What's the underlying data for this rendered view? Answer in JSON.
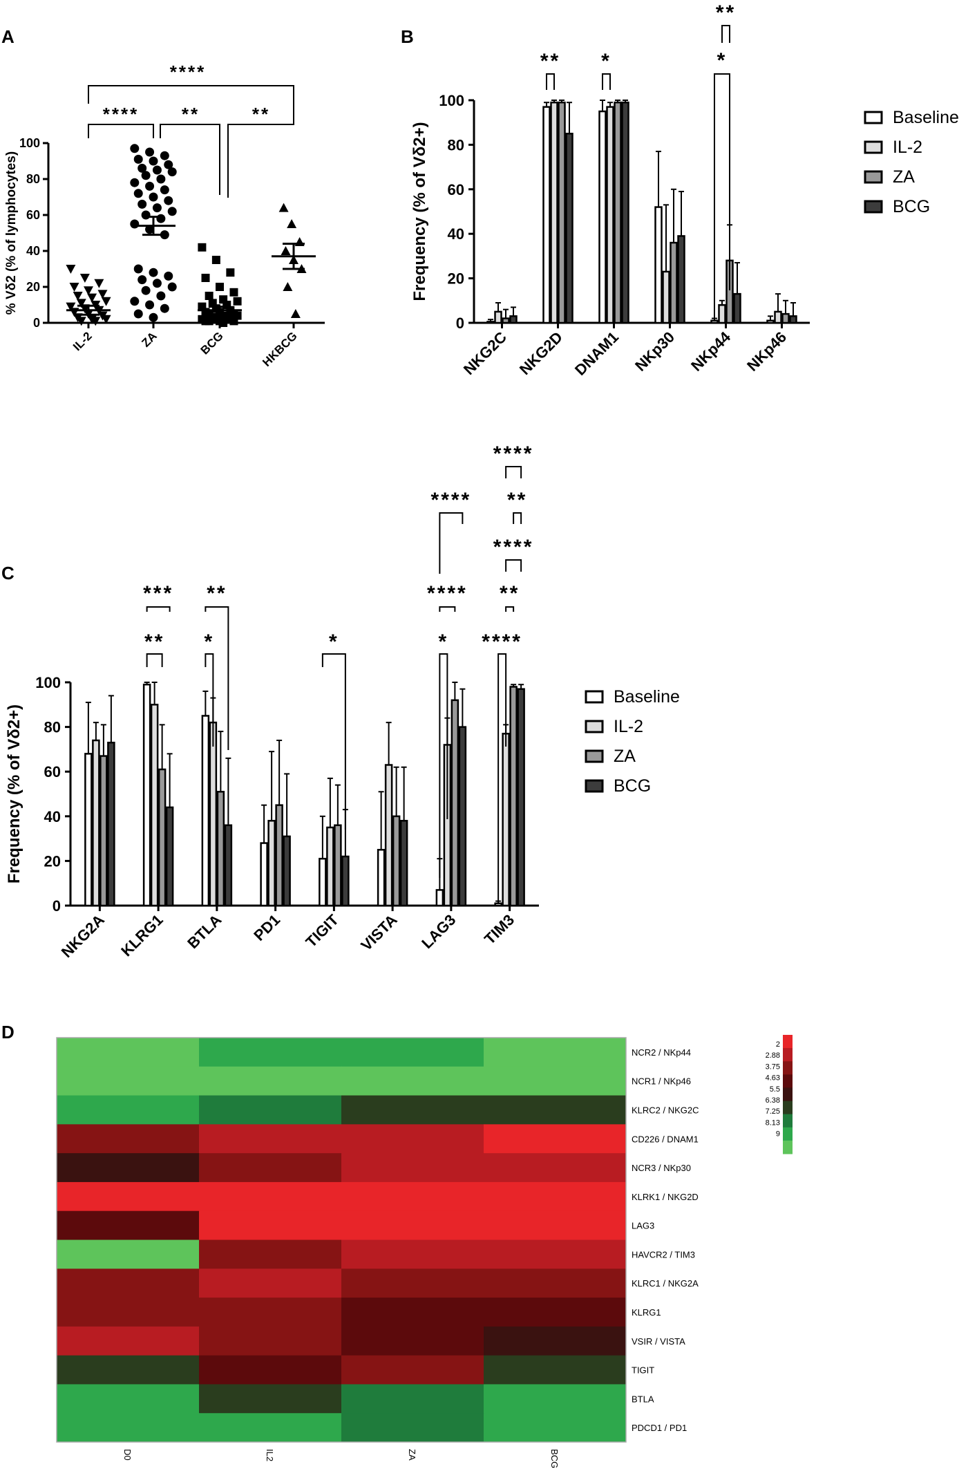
{
  "chart_data": [
    {
      "panel": "A",
      "type": "scatter",
      "ylabel": "% Vδ2 (% of lymphocytes)",
      "ylim": [
        0,
        100
      ],
      "yticks": [
        0,
        20,
        40,
        60,
        80,
        100
      ],
      "categories": [
        "IL-2",
        "ZA",
        "BCG",
        "HKBCG"
      ],
      "markers": [
        "triangle-down",
        "circle",
        "square",
        "triangle-up"
      ],
      "points": [
        [
          30,
          25,
          22,
          20,
          18,
          16,
          15,
          14,
          12,
          11,
          10,
          9,
          8,
          7,
          6,
          5,
          4,
          3,
          2,
          2,
          1,
          1
        ],
        [
          97,
          95,
          93,
          91,
          90,
          88,
          86,
          85,
          84,
          82,
          80,
          78,
          76,
          74,
          72,
          70,
          68,
          66,
          64,
          62,
          60,
          58,
          55,
          52,
          49,
          30,
          28,
          26,
          24,
          22,
          20,
          18,
          15,
          12,
          10,
          8,
          5,
          3
        ],
        [
          42,
          35,
          28,
          25,
          20,
          17,
          15,
          13,
          12,
          11,
          10,
          9,
          8,
          7,
          6,
          6,
          5,
          5,
          4,
          4,
          3,
          3,
          2,
          2,
          2,
          1,
          1,
          1,
          1,
          0
        ],
        [
          64,
          55,
          45,
          40,
          35,
          30,
          20,
          5
        ]
      ],
      "mean": [
        7,
        54,
        7,
        37
      ],
      "sem": [
        2.5,
        5,
        2,
        7
      ],
      "significance": [
        {
          "from": 0,
          "to": 3,
          "label": "****"
        },
        {
          "from": 0,
          "to": 1,
          "label": "****"
        },
        {
          "from": 1,
          "to": 2,
          "label": "**"
        },
        {
          "from": 2,
          "to": 3,
          "label": "**"
        }
      ]
    },
    {
      "panel": "B",
      "type": "bar",
      "ylabel": "Frequency (% of Vδ2+)",
      "ylim": [
        0,
        100
      ],
      "yticks": [
        0,
        20,
        40,
        60,
        80,
        100
      ],
      "categories": [
        "NKG2C",
        "NKG2D",
        "DNAM1",
        "NKp30",
        "NKp44",
        "NKp46"
      ],
      "series": [
        {
          "name": "Baseline",
          "values": [
            0.5,
            97,
            95,
            52,
            1,
            1
          ],
          "err": [
            1,
            2,
            5,
            25,
            1,
            2
          ],
          "color": "#ffffff"
        },
        {
          "name": "IL-2",
          "values": [
            5,
            99,
            97,
            23,
            8,
            5
          ],
          "err": [
            4,
            1,
            2,
            30,
            2,
            8
          ],
          "color": "#dddddd"
        },
        {
          "name": "ZA",
          "values": [
            2,
            99,
            99,
            36,
            28,
            4
          ],
          "err": [
            4,
            1,
            1,
            24,
            16,
            6
          ],
          "color": "#999999"
        },
        {
          "name": "BCG",
          "values": [
            3,
            85,
            99,
            39,
            13,
            3
          ],
          "err": [
            4,
            14,
            1,
            20,
            14,
            6
          ],
          "color": "#3c3c3c"
        }
      ],
      "legend": "right",
      "significance": [
        {
          "category": 1,
          "from": 0,
          "to": 1,
          "label": "**"
        },
        {
          "category": 2,
          "from": 0,
          "to": 1,
          "label": "*"
        },
        {
          "category": 4,
          "from": 0,
          "to": 2,
          "label": "*"
        },
        {
          "category": 4,
          "from": 1,
          "to": 2,
          "label": "**"
        }
      ]
    },
    {
      "panel": "C",
      "type": "bar",
      "ylabel": "Frequency (% of Vδ2+)",
      "ylim": [
        0,
        100
      ],
      "yticks": [
        0,
        20,
        40,
        60,
        80,
        100
      ],
      "categories": [
        "NKG2A",
        "KLRG1",
        "BTLA",
        "PD1",
        "TIGIT",
        "VISTA",
        "LAG3",
        "TIM3"
      ],
      "series": [
        {
          "name": "Baseline",
          "values": [
            68,
            99,
            85,
            28,
            21,
            25,
            7,
            1
          ],
          "err": [
            23,
            1,
            11,
            17,
            19,
            26,
            14,
            1
          ],
          "color": "#ffffff"
        },
        {
          "name": "IL-2",
          "values": [
            74,
            90,
            82,
            38,
            35,
            63,
            72,
            77
          ],
          "err": [
            8,
            10,
            11,
            31,
            22,
            19,
            12,
            4
          ],
          "color": "#dddddd"
        },
        {
          "name": "ZA",
          "values": [
            67,
            61,
            51,
            45,
            36,
            40,
            92,
            98
          ],
          "err": [
            14,
            20,
            27,
            29,
            18,
            22,
            8,
            1
          ],
          "color": "#999999"
        },
        {
          "name": "BCG",
          "values": [
            73,
            44,
            36,
            31,
            22,
            38,
            80,
            97
          ],
          "err": [
            21,
            24,
            30,
            28,
            21,
            24,
            17,
            2
          ],
          "color": "#3c3c3c"
        }
      ],
      "legend": "right",
      "significance": [
        {
          "category": 1,
          "from": 0,
          "to": 2,
          "label": "**"
        },
        {
          "category": 1,
          "from": 0,
          "to": 3,
          "label": "***"
        },
        {
          "category": 2,
          "from": 0,
          "to": 1,
          "label": "*"
        },
        {
          "category": 2,
          "from": 0,
          "to": 3,
          "label": "**"
        },
        {
          "category": 4,
          "from": 0,
          "to": 3,
          "label": "*"
        },
        {
          "category": 6,
          "from": 0,
          "to": 1,
          "label": "*"
        },
        {
          "category": 6,
          "from": 0,
          "to": 2,
          "label": "****"
        },
        {
          "category": 6,
          "from": 0,
          "to": 3,
          "label": "****"
        },
        {
          "category": 7,
          "from": 0,
          "to": 1,
          "label": "****"
        },
        {
          "category": 7,
          "from": 1,
          "to": 2,
          "label": "**"
        },
        {
          "category": 7,
          "from": 1,
          "to": 3,
          "label": "****"
        },
        {
          "category": 7,
          "from": 2,
          "to": 3,
          "label": "**"
        },
        {
          "category": 7,
          "from": 1,
          "to": 3,
          "label": "****"
        }
      ]
    },
    {
      "panel": "D",
      "type": "heatmap",
      "columns": [
        "D0",
        "IL2",
        "ZA",
        "BCG"
      ],
      "rows": [
        "NCR2 / NKp44",
        "NCR1 / NKp46",
        "KLRC2 / NKG2C",
        "CD226 / DNAM1",
        "NCR3 / NKp30",
        "KLRK1 / NKG2D",
        "LAG3",
        "HAVCR2 / TIM3",
        "KLRC1 / NKG2A",
        "KLRG1",
        "VSIR / VISTA",
        "TIGIT",
        "BTLA",
        "PDCD1 / PD1"
      ],
      "values": [
        [
          1.5,
          2.0,
          2.5,
          1.6
        ],
        [
          1.4,
          1.5,
          1.6,
          1.5
        ],
        [
          2.6,
          3.3,
          4.4,
          4.5
        ],
        [
          7.4,
          8.0,
          8.2,
          8.9
        ],
        [
          5.2,
          7.5,
          8.2,
          7.6
        ],
        [
          9.0,
          9.0,
          9.0,
          9.0
        ],
        [
          6.0,
          8.7,
          9.0,
          9.0
        ],
        [
          1.4,
          6.9,
          7.8,
          8.0
        ],
        [
          6.6,
          8.0,
          7.3,
          7.5
        ],
        [
          7.0,
          7.2,
          6.1,
          6.5
        ],
        [
          7.6,
          6.6,
          5.8,
          5.1
        ],
        [
          4.1,
          6.0,
          6.9,
          4.5
        ],
        [
          2.3,
          4.3,
          3.0,
          2.5
        ],
        [
          2.3,
          2.3,
          2.9,
          2.2
        ]
      ],
      "colorscale": {
        "ticks": [
          "2",
          "2.88",
          "3.75",
          "4.63",
          "5.5",
          "6.38",
          "7.25",
          "8.13",
          "9"
        ],
        "colors": [
          "#5ec45b",
          "#2ea84c",
          "#1f7c3c",
          "#2a3d1e",
          "#3a1210",
          "#5c0a0c",
          "#861414",
          "#b81c22",
          "#e82529"
        ]
      }
    }
  ]
}
